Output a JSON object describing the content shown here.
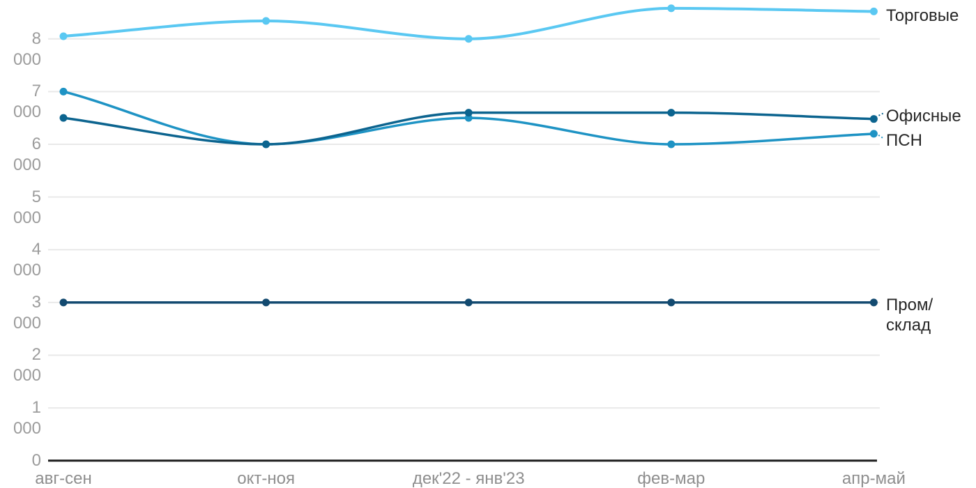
{
  "chart_data": {
    "type": "line",
    "title": "",
    "xlabel": "",
    "ylabel": "",
    "categories": [
      "авг-сен",
      "окт-ноя",
      "дек'22 - янв'23",
      "фев-мар",
      "апр-май"
    ],
    "series": [
      {
        "name": "Торговые",
        "values": [
          8050,
          8340,
          8000,
          8580,
          8520
        ],
        "color": "#5AC8F2",
        "line_width": 4,
        "label_lines": [
          "Торговые"
        ]
      },
      {
        "name": "ПСН",
        "values": [
          7000,
          6000,
          6500,
          6000,
          6200
        ],
        "color": "#1E93C4",
        "line_width": 3.5,
        "label_lines": [
          "ПСН"
        ]
      },
      {
        "name": "Офисные",
        "values": [
          6500,
          6000,
          6600,
          6600,
          6480
        ],
        "color": "#0C648F",
        "line_width": 3.5,
        "label_lines": [
          "Офисные"
        ]
      },
      {
        "name": "Пром/склад",
        "values": [
          3000,
          3000,
          3000,
          3000,
          3000
        ],
        "color": "#134A70",
        "line_width": 3.5,
        "label_lines": [
          "Пром/",
          "склад"
        ]
      }
    ],
    "y_ticks": [
      {
        "value": 0,
        "label": "0"
      },
      {
        "value": 1000,
        "label": "1 000"
      },
      {
        "value": 2000,
        "label": "2 000"
      },
      {
        "value": 3000,
        "label": "3 000"
      },
      {
        "value": 4000,
        "label": "4 000"
      },
      {
        "value": 5000,
        "label": "5 000"
      },
      {
        "value": 6000,
        "label": "6 000"
      },
      {
        "value": 7000,
        "label": "7 000"
      },
      {
        "value": 8000,
        "label": "8 000"
      }
    ],
    "ylim": [
      0,
      8700
    ],
    "grid": true,
    "curve": "monotone",
    "legend_position": "right-of-line-ends",
    "colors": {
      "grid_line": "#E9E9E9",
      "axis_line": "#1E1E1E",
      "y_tick_label": "#9C9C9C",
      "x_tick_label": "#8E8E8E",
      "series_label": "#262626"
    }
  }
}
